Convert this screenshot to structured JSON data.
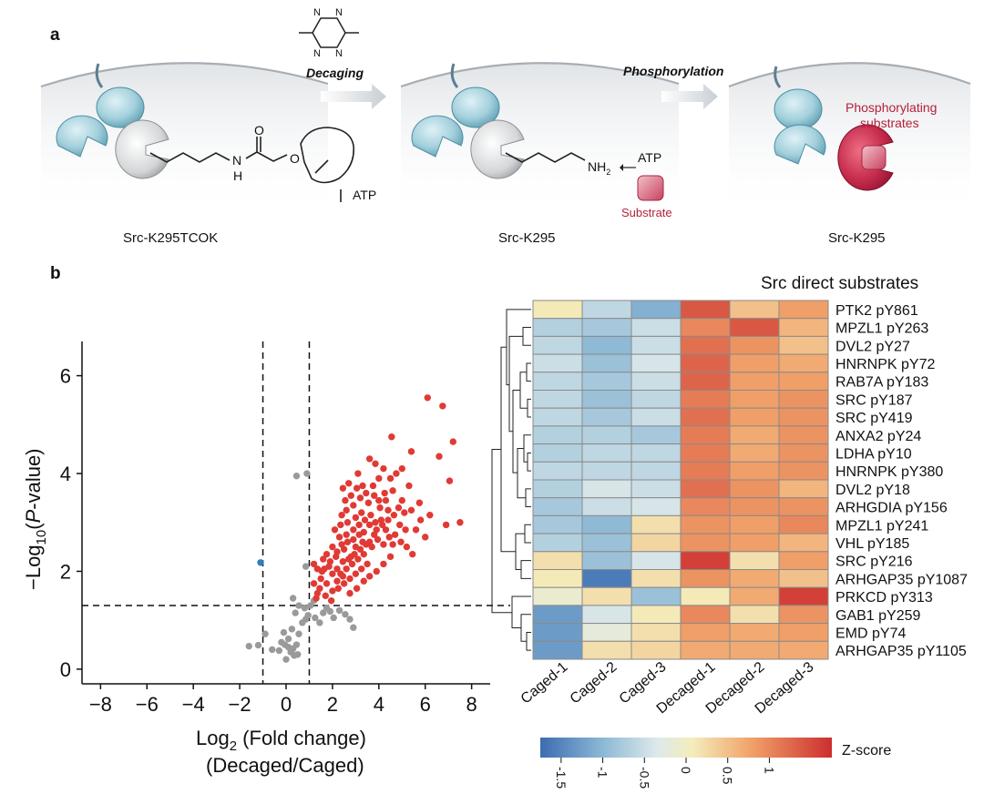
{
  "panel_a": {
    "label": "a",
    "decaging_label": "Decaging",
    "phosphorylation_label": "Phosphorylation",
    "caption_left": "Src-K295TCOK",
    "caption_mid": "Src-K295",
    "caption_right": "Src-K295",
    "tetrazine_n": "N",
    "chem": {
      "nh": "N",
      "h": "H",
      "o_carbonyl": "O",
      "o_ester": "O",
      "nh2": "NH",
      "nh2_sub": "2"
    },
    "atp_block": "ATP",
    "atp_arrow": "ATP",
    "substrate_label": "Substrate",
    "phospho_label_line1": "Phosphorylating",
    "phospho_label_line2": "substrates",
    "colors": {
      "enzyme": "#a7d3e0",
      "enzyme_dark": "#4c8ea4",
      "substrate": "#c8415e",
      "red_text": "#b5203a"
    }
  },
  "panel_b": {
    "label": "b",
    "heatmap_title": "Src direct substrates",
    "zscore_label": "Z-score",
    "colorbar_ticks": [
      "-1.5",
      "-1",
      "-0.5",
      "0",
      "0.5",
      "1"
    ],
    "ylabel_pre": "−Log",
    "ylabel_sub": "10",
    "ylabel_paren_open": "(",
    "ylabel_p": "P",
    "ylabel_post": "-value)",
    "xlabel_pre": "Log",
    "xlabel_sub": "2",
    "xlabel_post": " (Fold change)",
    "xlabel_line2": "(Decaged/Caged)"
  },
  "chart_data": [
    {
      "type": "scatter",
      "title": "",
      "xlabel": "Log2 (Fold change) (Decaged/Caged)",
      "ylabel": "−Log10(P-value)",
      "xlim": [
        -8.8,
        8.8
      ],
      "ylim": [
        -0.3,
        6.7
      ],
      "x_ticks": [
        "−8",
        "−6",
        "−4",
        "−2",
        "0",
        "2",
        "4",
        "6",
        "8"
      ],
      "y_ticks": [
        "0",
        "2",
        "4",
        "6"
      ],
      "thresholds": {
        "x": [
          -1,
          1
        ],
        "y": 1.3
      },
      "series": [
        {
          "name": "down",
          "color": "#2e7fb8",
          "points": [
            [
              -1.1,
              2.18
            ]
          ]
        },
        {
          "name": "not significant",
          "color": "#9a9a9a",
          "points": [
            [
              -1.6,
              0.47
            ],
            [
              -1.2,
              0.49
            ],
            [
              -0.9,
              0.72
            ],
            [
              -0.6,
              0.4
            ],
            [
              -0.3,
              0.38
            ],
            [
              -0.2,
              0.55
            ],
            [
              -0.05,
              0.5
            ],
            [
              0.1,
              0.45
            ],
            [
              0.3,
              0.42
            ],
            [
              0.45,
              0.5
            ],
            [
              0.1,
              0.62
            ],
            [
              0.2,
              0.35
            ],
            [
              0.35,
              0.28
            ],
            [
              0.0,
              0.2
            ],
            [
              -0.1,
              0.75
            ],
            [
              0.25,
              0.82
            ],
            [
              0.5,
              0.3
            ],
            [
              0.55,
              0.72
            ],
            [
              0.7,
              0.95
            ],
            [
              0.85,
              1.02
            ],
            [
              0.95,
              1.1
            ],
            [
              0.4,
              1.15
            ],
            [
              0.55,
              1.3
            ],
            [
              0.8,
              1.25
            ],
            [
              1.25,
              1.05
            ],
            [
              1.45,
              0.95
            ],
            [
              1.6,
              1.15
            ],
            [
              1.75,
              1.25
            ],
            [
              1.9,
              1.18
            ],
            [
              2.05,
              1.05
            ],
            [
              2.3,
              1.2
            ],
            [
              2.55,
              1.12
            ],
            [
              2.75,
              1.02
            ],
            [
              2.9,
              0.85
            ],
            [
              1.05,
              1.3
            ],
            [
              0.85,
              2.1
            ],
            [
              0.45,
              3.95
            ],
            [
              0.9,
              4.0
            ],
            [
              0.3,
              1.45
            ],
            [
              1.2,
              1.4
            ]
          ]
        },
        {
          "name": "up",
          "color": "#e03a35",
          "points": [
            [
              6.1,
              5.55
            ],
            [
              6.75,
              5.38
            ],
            [
              5.4,
              4.45
            ],
            [
              6.6,
              4.35
            ],
            [
              7.05,
              3.85
            ],
            [
              7.2,
              4.65
            ],
            [
              6.9,
              2.95
            ],
            [
              7.5,
              3.0
            ],
            [
              5.0,
              4.1
            ],
            [
              4.55,
              4.75
            ],
            [
              4.2,
              4.1
            ],
            [
              3.85,
              4.2
            ],
            [
              3.6,
              4.3
            ],
            [
              3.3,
              3.75
            ],
            [
              3.05,
              3.7
            ],
            [
              2.8,
              3.55
            ],
            [
              2.55,
              3.45
            ],
            [
              2.4,
              3.15
            ],
            [
              2.65,
              3.0
            ],
            [
              3.0,
              3.1
            ],
            [
              3.25,
              3.2
            ],
            [
              3.55,
              3.4
            ],
            [
              3.8,
              3.55
            ],
            [
              4.05,
              3.3
            ],
            [
              4.3,
              3.45
            ],
            [
              4.6,
              3.65
            ],
            [
              4.85,
              3.3
            ],
            [
              5.1,
              3.2
            ],
            [
              5.4,
              3.25
            ],
            [
              5.8,
              3.05
            ],
            [
              6.0,
              2.7
            ],
            [
              4.3,
              2.85
            ],
            [
              4.1,
              3.05
            ],
            [
              3.85,
              3.0
            ],
            [
              3.6,
              2.95
            ],
            [
              3.35,
              2.8
            ],
            [
              3.15,
              2.75
            ],
            [
              2.9,
              2.65
            ],
            [
              2.65,
              2.6
            ],
            [
              2.4,
              2.55
            ],
            [
              2.2,
              2.4
            ],
            [
              2.0,
              2.5
            ],
            [
              1.75,
              2.35
            ],
            [
              1.6,
              2.25
            ],
            [
              1.35,
              2.05
            ],
            [
              1.2,
              2.15
            ],
            [
              1.5,
              1.85
            ],
            [
              1.75,
              1.75
            ],
            [
              2.0,
              1.95
            ],
            [
              2.2,
              2.05
            ],
            [
              2.45,
              2.2
            ],
            [
              2.7,
              2.25
            ],
            [
              2.95,
              2.35
            ],
            [
              3.2,
              2.45
            ],
            [
              3.45,
              2.55
            ],
            [
              3.7,
              2.5
            ],
            [
              3.95,
              2.65
            ],
            [
              4.2,
              2.55
            ],
            [
              4.45,
              2.7
            ],
            [
              4.7,
              2.75
            ],
            [
              4.95,
              2.6
            ],
            [
              5.2,
              2.5
            ],
            [
              5.45,
              2.35
            ],
            [
              3.5,
              2.15
            ],
            [
              3.25,
              2.05
            ],
            [
              3.0,
              1.95
            ],
            [
              2.75,
              1.85
            ],
            [
              2.5,
              1.75
            ],
            [
              2.25,
              1.65
            ],
            [
              2.0,
              1.6
            ],
            [
              1.7,
              1.5
            ],
            [
              1.45,
              1.65
            ],
            [
              1.3,
              1.45
            ],
            [
              1.2,
              1.75
            ],
            [
              1.55,
              2.0
            ],
            [
              1.85,
              2.1
            ],
            [
              2.35,
              1.95
            ],
            [
              2.6,
              2.05
            ],
            [
              2.85,
              2.15
            ],
            [
              3.1,
              2.25
            ],
            [
              3.35,
              2.35
            ],
            [
              3.6,
              2.6
            ],
            [
              3.9,
              2.85
            ],
            [
              4.15,
              2.95
            ],
            [
              4.4,
              3.05
            ],
            [
              4.65,
              3.15
            ],
            [
              4.9,
              2.95
            ],
            [
              5.15,
              2.85
            ],
            [
              4.0,
              3.45
            ],
            [
              4.25,
              3.6
            ],
            [
              3.65,
              3.15
            ],
            [
              3.4,
              3.05
            ],
            [
              3.15,
              2.95
            ],
            [
              2.9,
              2.85
            ],
            [
              2.6,
              2.75
            ],
            [
              2.3,
              2.7
            ],
            [
              2.1,
              2.85
            ],
            [
              2.35,
              2.95
            ],
            [
              2.6,
              3.25
            ],
            [
              2.9,
              3.35
            ],
            [
              3.2,
              3.5
            ],
            [
              3.45,
              3.6
            ],
            [
              3.75,
              3.75
            ],
            [
              4.0,
              3.9
            ],
            [
              4.5,
              3.9
            ],
            [
              4.75,
              4.0
            ],
            [
              3.1,
              4.0
            ],
            [
              2.7,
              3.8
            ],
            [
              2.45,
              3.7
            ],
            [
              4.4,
              3.25
            ],
            [
              5.0,
              3.45
            ],
            [
              5.3,
              3.75
            ],
            [
              1.9,
              2.2
            ],
            [
              2.15,
              2.3
            ],
            [
              2.5,
              2.45
            ],
            [
              3.3,
              2.6
            ],
            [
              3.8,
              2.75
            ],
            [
              4.6,
              2.55
            ],
            [
              1.65,
              2.05
            ],
            [
              2.8,
              2.3
            ],
            [
              3.0,
              2.5
            ],
            [
              2.2,
              1.8
            ],
            [
              2.45,
              1.9
            ],
            [
              1.95,
              1.4
            ],
            [
              2.75,
              1.55
            ],
            [
              3.05,
              1.65
            ],
            [
              3.35,
              1.8
            ],
            [
              3.6,
              1.9
            ],
            [
              3.9,
              2.0
            ],
            [
              4.2,
              2.15
            ],
            [
              4.5,
              2.3
            ],
            [
              1.35,
              1.55
            ],
            [
              5.6,
              2.85
            ],
            [
              5.75,
              3.4
            ],
            [
              6.2,
              3.15
            ]
          ]
        }
      ]
    },
    {
      "type": "heatmap",
      "title": "Src direct substrates",
      "columns": [
        "Caged-1",
        "Caged-2",
        "Caged-3",
        "Decaged-1",
        "Decaged-2",
        "Decaged-3"
      ],
      "rows": [
        "PTK2 pY861",
        "MPZL1 pY263",
        "DVL2 pY27",
        "HNRNPK pY72",
        "RAB7A pY183",
        "SRC pY187",
        "SRC pY419",
        "ANXA2 pY24",
        "LDHA pY10",
        "HNRNPK pY380",
        "DVL2 pY18",
        "ARHGDIA pY156",
        "MPZL1 pY241",
        "VHL pY185",
        "SRC pY216",
        "ARHGAP35 pY1087",
        "PRKCD pY313",
        "GAB1 pY259",
        "EMD pY74",
        "ARHGAP35 pY1105"
      ],
      "values": [
        [
          0.1,
          -0.6,
          -1.1,
          1.4,
          0.5,
          0.8
        ],
        [
          -0.7,
          -0.8,
          -0.5,
          1.0,
          1.4,
          0.6
        ],
        [
          -0.6,
          -1.0,
          -0.5,
          1.2,
          0.9,
          0.5
        ],
        [
          -0.5,
          -0.9,
          -0.4,
          1.3,
          0.8,
          0.7
        ],
        [
          -0.6,
          -0.8,
          -0.5,
          1.3,
          0.8,
          0.8
        ],
        [
          -0.6,
          -0.9,
          -0.6,
          1.1,
          0.8,
          0.9
        ],
        [
          -0.6,
          -0.8,
          -0.5,
          1.2,
          0.8,
          0.9
        ],
        [
          -0.7,
          -0.7,
          -0.8,
          1.1,
          0.7,
          0.9
        ],
        [
          -0.7,
          -0.6,
          -0.6,
          1.1,
          0.7,
          0.9
        ],
        [
          -0.6,
          -0.6,
          -0.6,
          1.1,
          0.8,
          0.9
        ],
        [
          -0.7,
          -0.4,
          -0.5,
          1.2,
          0.9,
          0.6
        ],
        [
          -0.8,
          -0.5,
          -0.4,
          1.0,
          0.9,
          0.9
        ],
        [
          -0.8,
          -1.0,
          0.2,
          0.9,
          0.8,
          1.0
        ],
        [
          -0.7,
          -0.9,
          0.3,
          0.9,
          0.8,
          0.6
        ],
        [
          0.2,
          -0.9,
          -0.4,
          1.6,
          0.2,
          0.8
        ],
        [
          0.1,
          -1.6,
          0.2,
          0.9,
          0.7,
          0.5
        ],
        [
          -0.1,
          0.2,
          -0.9,
          0.1,
          0.7,
          1.6
        ],
        [
          -1.3,
          -0.4,
          0.1,
          1.0,
          0.2,
          0.9
        ],
        [
          -1.3,
          -0.2,
          0.2,
          0.8,
          0.7,
          0.8
        ],
        [
          -1.3,
          0.2,
          0.3,
          0.7,
          0.7,
          0.7
        ]
      ],
      "zlim": [
        -1.75,
        1.75
      ],
      "colorbar_label": "Z-score",
      "colorbar_ticks": [
        -1.5,
        -1,
        -0.5,
        0,
        0.5,
        1
      ]
    }
  ]
}
